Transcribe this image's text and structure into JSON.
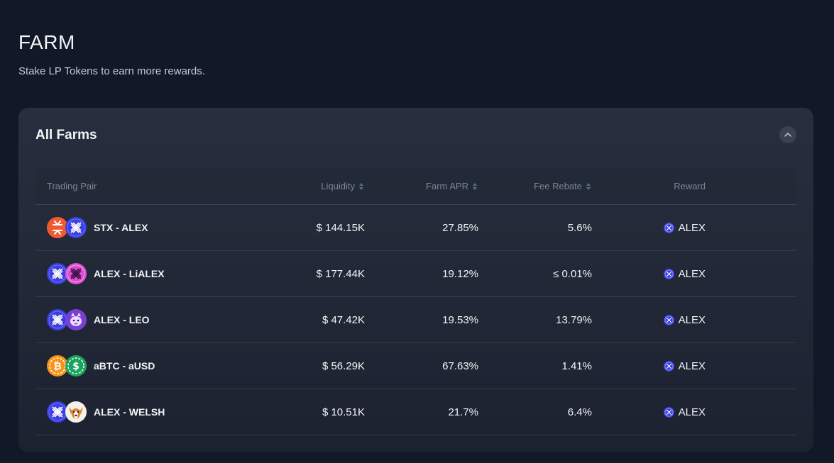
{
  "page": {
    "title": "FARM",
    "subtitle": "Stake LP Tokens to earn more rewards."
  },
  "card": {
    "title": "All Farms"
  },
  "table": {
    "headers": {
      "pair": "Trading Pair",
      "liquidity": "Liquidity",
      "apr": "Farm APR",
      "fee": "Fee Rebate",
      "reward": "Reward"
    },
    "rows": [
      {
        "pair": "STX - ALEX",
        "tokens": [
          "stx-icon",
          "alex-icon"
        ],
        "liquidity": "$ 144.15K",
        "apr": "27.85%",
        "fee": "5.6%",
        "reward": "ALEX"
      },
      {
        "pair": "ALEX - LiALEX",
        "tokens": [
          "alex-icon",
          "lialex-icon"
        ],
        "liquidity": "$ 177.44K",
        "apr": "19.12%",
        "fee": "≤ 0.01%",
        "reward": "ALEX"
      },
      {
        "pair": "ALEX - LEO",
        "tokens": [
          "alex-icon",
          "leo-icon"
        ],
        "liquidity": "$ 47.42K",
        "apr": "19.53%",
        "fee": "13.79%",
        "reward": "ALEX"
      },
      {
        "pair": "aBTC - aUSD",
        "tokens": [
          "abtc-icon",
          "ausd-icon"
        ],
        "liquidity": "$ 56.29K",
        "apr": "67.63%",
        "fee": "1.41%",
        "reward": "ALEX"
      },
      {
        "pair": "ALEX - WELSH",
        "tokens": [
          "alex-icon",
          "welsh-icon"
        ],
        "liquidity": "$ 10.51K",
        "apr": "21.7%",
        "fee": "6.4%",
        "reward": "ALEX"
      }
    ]
  },
  "colors": {
    "background": "#111827",
    "card": "#272e3d",
    "stx": "#f05a32",
    "alex": "#3b3fe0",
    "lialex": "#d94fd1",
    "abtc": "#f7931a",
    "ausd": "#1aa35e"
  }
}
